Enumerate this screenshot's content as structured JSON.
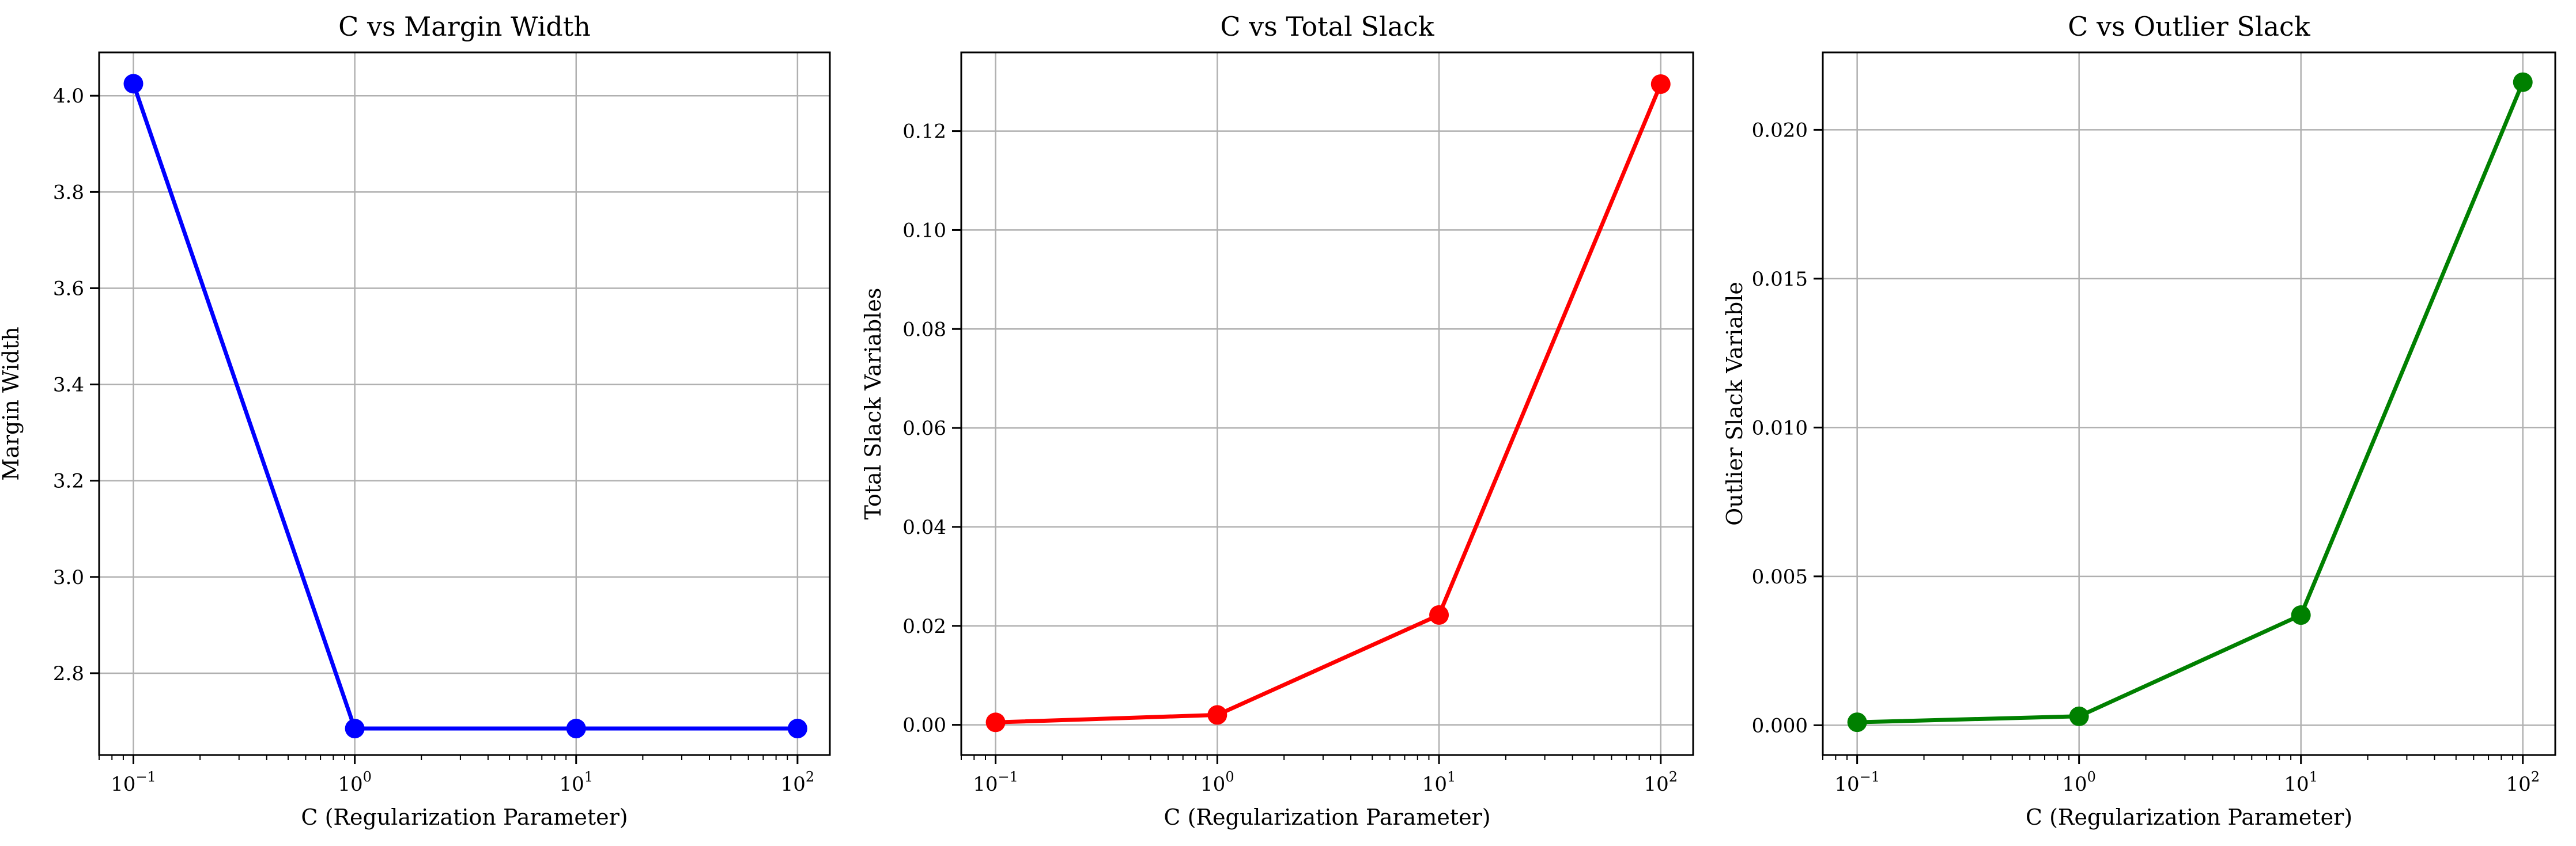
{
  "chart_data": [
    {
      "type": "line",
      "title": "C vs Margin Width",
      "xlabel": "C (Regularization Parameter)",
      "ylabel": "Margin Width",
      "xscale": "log",
      "xlim": [
        0.07,
        140
      ],
      "ylim": [
        2.63,
        4.09
      ],
      "x": [
        0.1,
        1,
        10,
        100
      ],
      "x_ticks": [
        0.1,
        1,
        10,
        100
      ],
      "x_tick_labels": [
        {
          "base": "10",
          "exp": "−1"
        },
        {
          "base": "10",
          "exp": "0"
        },
        {
          "base": "10",
          "exp": "1"
        },
        {
          "base": "10",
          "exp": "2"
        }
      ],
      "y_ticks": [
        2.8,
        3.0,
        3.2,
        3.4,
        3.6,
        3.8,
        4.0
      ],
      "y_tick_labels": [
        "2.8",
        "3.0",
        "3.2",
        "3.4",
        "3.6",
        "3.8",
        "4.0"
      ],
      "grid": true,
      "series": [
        {
          "values": [
            4.025,
            2.685,
            2.685,
            2.685
          ],
          "color": "#0000ff",
          "marker": "circle"
        }
      ]
    },
    {
      "type": "line",
      "title": "C vs Total Slack",
      "xlabel": "C (Regularization Parameter)",
      "ylabel": "Total Slack Variables",
      "xscale": "log",
      "xlim": [
        0.07,
        140
      ],
      "ylim": [
        -0.0061,
        0.1359
      ],
      "x": [
        0.1,
        1,
        10,
        100
      ],
      "x_ticks": [
        0.1,
        1,
        10,
        100
      ],
      "x_tick_labels": [
        {
          "base": "10",
          "exp": "−1"
        },
        {
          "base": "10",
          "exp": "0"
        },
        {
          "base": "10",
          "exp": "1"
        },
        {
          "base": "10",
          "exp": "2"
        }
      ],
      "y_ticks": [
        0.0,
        0.02,
        0.04,
        0.06,
        0.08,
        0.1,
        0.12
      ],
      "y_tick_labels": [
        "0.00",
        "0.02",
        "0.04",
        "0.06",
        "0.08",
        "0.10",
        "0.12"
      ],
      "grid": true,
      "series": [
        {
          "values": [
            0.0005,
            0.002,
            0.0222,
            0.1295
          ],
          "color": "#ff0000",
          "marker": "circle"
        }
      ]
    },
    {
      "type": "line",
      "title": "C vs Outlier Slack",
      "xlabel": "C (Regularization Parameter)",
      "ylabel": "Outlier Slack Variable",
      "xscale": "log",
      "xlim": [
        0.07,
        140
      ],
      "ylim": [
        -0.001,
        0.0226
      ],
      "x": [
        0.1,
        1,
        10,
        100
      ],
      "x_ticks": [
        0.1,
        1,
        10,
        100
      ],
      "x_tick_labels": [
        {
          "base": "10",
          "exp": "−1"
        },
        {
          "base": "10",
          "exp": "0"
        },
        {
          "base": "10",
          "exp": "1"
        },
        {
          "base": "10",
          "exp": "2"
        }
      ],
      "y_ticks": [
        0.0,
        0.005,
        0.01,
        0.015,
        0.02
      ],
      "y_tick_labels": [
        "0.000",
        "0.005",
        "0.010",
        "0.015",
        "0.020"
      ],
      "grid": true,
      "series": [
        {
          "values": [
            0.0001,
            0.0003,
            0.0037,
            0.0216
          ],
          "color": "#008000",
          "marker": "circle"
        }
      ]
    }
  ]
}
